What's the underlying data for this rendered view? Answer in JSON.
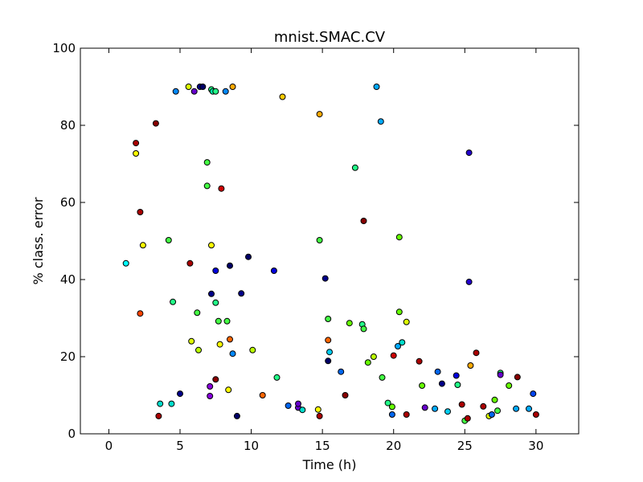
{
  "chart_data": {
    "type": "scatter",
    "title": "mnist.SMAC.CV",
    "xlabel": "Time (h)",
    "ylabel": "% class. error",
    "xlim": [
      -2,
      33
    ],
    "ylim": [
      0,
      100
    ],
    "xticks": [
      0,
      5,
      10,
      15,
      20,
      25,
      30
    ],
    "yticks": [
      0,
      20,
      40,
      60,
      80,
      100
    ],
    "grid": false,
    "points": [
      {
        "x": 1.2,
        "y": 44.2,
        "color": "#00ffff"
      },
      {
        "x": 1.9,
        "y": 75.4,
        "color": "#aa0000"
      },
      {
        "x": 1.9,
        "y": 72.7,
        "color": "#ffff00"
      },
      {
        "x": 2.2,
        "y": 57.5,
        "color": "#aa0000"
      },
      {
        "x": 2.2,
        "y": 31.2,
        "color": "#ff4400"
      },
      {
        "x": 2.4,
        "y": 48.9,
        "color": "#ffff00"
      },
      {
        "x": 3.3,
        "y": 80.5,
        "color": "#880000"
      },
      {
        "x": 3.5,
        "y": 4.6,
        "color": "#aa0000"
      },
      {
        "x": 3.6,
        "y": 7.8,
        "color": "#00ddcc"
      },
      {
        "x": 4.2,
        "y": 50.2,
        "color": "#44ff44"
      },
      {
        "x": 4.4,
        "y": 7.8,
        "color": "#00ddcc"
      },
      {
        "x": 4.5,
        "y": 34.2,
        "color": "#22ff88"
      },
      {
        "x": 4.7,
        "y": 88.8,
        "color": "#0088ff"
      },
      {
        "x": 5.0,
        "y": 10.4,
        "color": "#000088"
      },
      {
        "x": 5.6,
        "y": 90.0,
        "color": "#ddff00"
      },
      {
        "x": 5.7,
        "y": 44.2,
        "color": "#aa0000"
      },
      {
        "x": 5.8,
        "y": 24.0,
        "color": "#ddff00"
      },
      {
        "x": 6.0,
        "y": 88.8,
        "color": "#6600cc"
      },
      {
        "x": 6.2,
        "y": 31.4,
        "color": "#44ff44"
      },
      {
        "x": 6.3,
        "y": 21.7,
        "color": "#bbff00"
      },
      {
        "x": 6.4,
        "y": 90.0,
        "color": "#000088"
      },
      {
        "x": 6.6,
        "y": 90.0,
        "color": "#000066"
      },
      {
        "x": 6.9,
        "y": 70.4,
        "color": "#44ff44"
      },
      {
        "x": 6.9,
        "y": 64.3,
        "color": "#44ff44"
      },
      {
        "x": 7.1,
        "y": 12.3,
        "color": "#8800dd"
      },
      {
        "x": 7.1,
        "y": 9.8,
        "color": "#8800dd"
      },
      {
        "x": 7.2,
        "y": 89.3,
        "color": "#22ff88"
      },
      {
        "x": 7.2,
        "y": 48.9,
        "color": "#ffff00"
      },
      {
        "x": 7.2,
        "y": 36.3,
        "color": "#000088"
      },
      {
        "x": 7.3,
        "y": 88.8,
        "color": "#00ffaa"
      },
      {
        "x": 7.5,
        "y": 88.8,
        "color": "#22ff88"
      },
      {
        "x": 7.5,
        "y": 14.1,
        "color": "#880000"
      },
      {
        "x": 7.5,
        "y": 42.3,
        "color": "#0000dd"
      },
      {
        "x": 7.5,
        "y": 34.0,
        "color": "#22ff88"
      },
      {
        "x": 7.7,
        "y": 29.2,
        "color": "#44ff44"
      },
      {
        "x": 7.8,
        "y": 23.2,
        "color": "#ffff00"
      },
      {
        "x": 7.9,
        "y": 63.6,
        "color": "#cc0000"
      },
      {
        "x": 8.2,
        "y": 88.8,
        "color": "#0088ff"
      },
      {
        "x": 8.3,
        "y": 29.2,
        "color": "#44ff44"
      },
      {
        "x": 8.4,
        "y": 11.4,
        "color": "#ffff00"
      },
      {
        "x": 8.5,
        "y": 43.6,
        "color": "#000066"
      },
      {
        "x": 8.5,
        "y": 24.5,
        "color": "#ff6600"
      },
      {
        "x": 8.7,
        "y": 90.0,
        "color": "#ffaa00"
      },
      {
        "x": 8.7,
        "y": 20.8,
        "color": "#0088ff"
      },
      {
        "x": 9.0,
        "y": 4.6,
        "color": "#000066"
      },
      {
        "x": 9.3,
        "y": 36.4,
        "color": "#000088"
      },
      {
        "x": 9.8,
        "y": 45.9,
        "color": "#000066"
      },
      {
        "x": 10.1,
        "y": 21.7,
        "color": "#bbff00"
      },
      {
        "x": 10.8,
        "y": 10.0,
        "color": "#ff6600"
      },
      {
        "x": 11.6,
        "y": 42.3,
        "color": "#0000dd"
      },
      {
        "x": 11.8,
        "y": 14.6,
        "color": "#22ff88"
      },
      {
        "x": 12.2,
        "y": 87.4,
        "color": "#ffcc00"
      },
      {
        "x": 12.6,
        "y": 7.3,
        "color": "#0066ee"
      },
      {
        "x": 13.3,
        "y": 6.8,
        "color": "#6600cc"
      },
      {
        "x": 13.3,
        "y": 7.8,
        "color": "#6600cc"
      },
      {
        "x": 13.6,
        "y": 6.2,
        "color": "#00ddcc"
      },
      {
        "x": 14.7,
        "y": 6.3,
        "color": "#ffff00"
      },
      {
        "x": 14.8,
        "y": 4.6,
        "color": "#aa0000"
      },
      {
        "x": 14.8,
        "y": 82.9,
        "color": "#ffaa00"
      },
      {
        "x": 14.8,
        "y": 50.2,
        "color": "#44ff44"
      },
      {
        "x": 15.2,
        "y": 40.3,
        "color": "#000088"
      },
      {
        "x": 15.4,
        "y": 29.8,
        "color": "#44ff44"
      },
      {
        "x": 15.4,
        "y": 24.3,
        "color": "#ff6600"
      },
      {
        "x": 15.5,
        "y": 21.2,
        "color": "#00ccee"
      },
      {
        "x": 15.4,
        "y": 18.9,
        "color": "#000066"
      },
      {
        "x": 16.3,
        "y": 16.1,
        "color": "#0066ee"
      },
      {
        "x": 16.6,
        "y": 10.0,
        "color": "#880000"
      },
      {
        "x": 16.9,
        "y": 28.7,
        "color": "#66ff00"
      },
      {
        "x": 17.3,
        "y": 69.0,
        "color": "#22ff88"
      },
      {
        "x": 17.8,
        "y": 28.4,
        "color": "#22ff88"
      },
      {
        "x": 17.9,
        "y": 55.2,
        "color": "#880000"
      },
      {
        "x": 17.9,
        "y": 27.2,
        "color": "#44ff44"
      },
      {
        "x": 18.2,
        "y": 18.5,
        "color": "#66ff00"
      },
      {
        "x": 18.6,
        "y": 20.0,
        "color": "#bbff00"
      },
      {
        "x": 18.8,
        "y": 90.0,
        "color": "#00aaff"
      },
      {
        "x": 19.1,
        "y": 81.0,
        "color": "#00aaff"
      },
      {
        "x": 19.2,
        "y": 14.6,
        "color": "#44ff44"
      },
      {
        "x": 19.6,
        "y": 8.0,
        "color": "#22ff88"
      },
      {
        "x": 19.9,
        "y": 5.0,
        "color": "#0066ee"
      },
      {
        "x": 19.9,
        "y": 7.0,
        "color": "#66ff00"
      },
      {
        "x": 20.0,
        "y": 20.3,
        "color": "#cc0000"
      },
      {
        "x": 20.3,
        "y": 22.7,
        "color": "#00aaff"
      },
      {
        "x": 20.4,
        "y": 51.0,
        "color": "#66ff00"
      },
      {
        "x": 20.4,
        "y": 31.6,
        "color": "#66ff00"
      },
      {
        "x": 20.6,
        "y": 23.7,
        "color": "#00ddcc"
      },
      {
        "x": 20.9,
        "y": 5.0,
        "color": "#aa0000"
      },
      {
        "x": 20.9,
        "y": 29.0,
        "color": "#ddff00"
      },
      {
        "x": 21.8,
        "y": 18.8,
        "color": "#aa0000"
      },
      {
        "x": 22.0,
        "y": 12.5,
        "color": "#66ff00"
      },
      {
        "x": 22.2,
        "y": 6.8,
        "color": "#6600cc"
      },
      {
        "x": 22.9,
        "y": 6.5,
        "color": "#00aaff"
      },
      {
        "x": 23.1,
        "y": 16.1,
        "color": "#0066ee"
      },
      {
        "x": 23.4,
        "y": 13.0,
        "color": "#000088"
      },
      {
        "x": 23.8,
        "y": 5.8,
        "color": "#00ccee"
      },
      {
        "x": 24.4,
        "y": 15.1,
        "color": "#0000dd"
      },
      {
        "x": 24.5,
        "y": 12.7,
        "color": "#22ff88"
      },
      {
        "x": 24.8,
        "y": 7.6,
        "color": "#aa0000"
      },
      {
        "x": 25.0,
        "y": 3.4,
        "color": "#44ff44"
      },
      {
        "x": 25.2,
        "y": 4.0,
        "color": "#aa0000"
      },
      {
        "x": 25.3,
        "y": 72.9,
        "color": "#2200cc"
      },
      {
        "x": 25.3,
        "y": 39.4,
        "color": "#2200cc"
      },
      {
        "x": 25.4,
        "y": 17.7,
        "color": "#ffaa00"
      },
      {
        "x": 25.8,
        "y": 21.0,
        "color": "#aa0000"
      },
      {
        "x": 26.3,
        "y": 7.1,
        "color": "#aa0000"
      },
      {
        "x": 26.7,
        "y": 4.6,
        "color": "#ddff00"
      },
      {
        "x": 26.9,
        "y": 5.0,
        "color": "#0066ee"
      },
      {
        "x": 27.1,
        "y": 8.8,
        "color": "#66ff00"
      },
      {
        "x": 27.3,
        "y": 6.0,
        "color": "#44ff44"
      },
      {
        "x": 27.5,
        "y": 15.8,
        "color": "#22ff88"
      },
      {
        "x": 27.5,
        "y": 15.3,
        "color": "#6600cc"
      },
      {
        "x": 28.1,
        "y": 12.5,
        "color": "#66ff00"
      },
      {
        "x": 28.6,
        "y": 6.5,
        "color": "#00aaff"
      },
      {
        "x": 28.7,
        "y": 14.7,
        "color": "#880000"
      },
      {
        "x": 29.5,
        "y": 6.5,
        "color": "#00aaff"
      },
      {
        "x": 29.8,
        "y": 10.4,
        "color": "#0044ee"
      },
      {
        "x": 30.0,
        "y": 5.0,
        "color": "#aa0000"
      }
    ]
  }
}
